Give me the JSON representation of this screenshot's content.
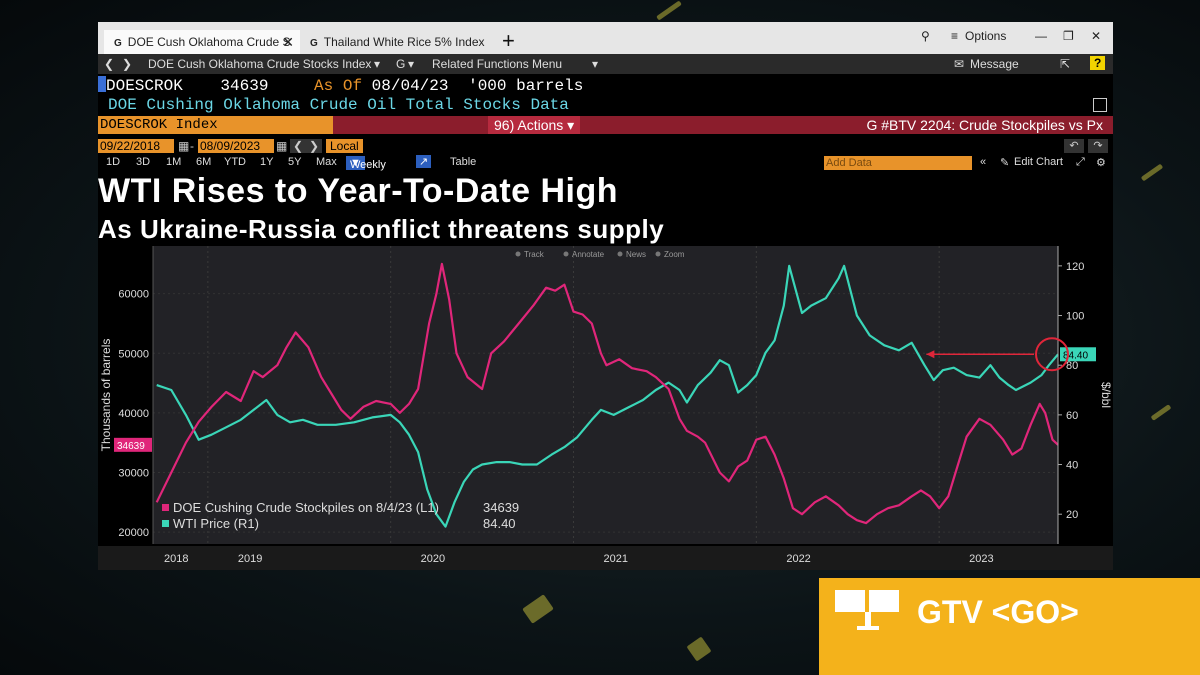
{
  "tabs": [
    {
      "label": "DOE Cush Oklahoma Crude S",
      "icon": "g-icon",
      "close": "✕"
    },
    {
      "label": "Thailand White Rice 5% Index",
      "icon": "g-icon"
    }
  ],
  "new_tab": "+",
  "window_controls": {
    "options": "Options"
  },
  "menubar": {
    "security": "DOE Cush Oklahoma Crude Stocks Index",
    "g_menu": "G",
    "related": "Related Functions Menu",
    "message": "Message",
    "help": "?"
  },
  "quote": {
    "ticker": "DOESCROK",
    "value": "34639",
    "as_of_label": "As Of",
    "date": "08/04/23",
    "unit": "'000 barrels"
  },
  "description": "DOE Cushing Oklahoma Crude Oil Total Stocks Data",
  "function_bar": {
    "security": "DOESCROK Index",
    "actions": "96) Actions",
    "btv_title": "G #BTV 2204: Crude Stockpiles vs Px"
  },
  "date_range": {
    "start": "09/22/2018",
    "end": "08/09/2023",
    "currency": "Local CCY"
  },
  "periods": [
    "1D",
    "3D",
    "1M",
    "6M",
    "YTD",
    "1Y",
    "5Y",
    "Max"
  ],
  "frequency": "Weekly",
  "table_label": "Table",
  "add_data_placeholder": "Add Data",
  "edit_chart_label": "Edit Chart",
  "headline": "WTI Rises to Year-To-Date High",
  "subheadline": "As Ukraine-Russia conflict threatens supply",
  "chart_toolbar": [
    "Track",
    "Annotate",
    "News",
    "Zoom"
  ],
  "colors": {
    "stockpiles": "#e0267a",
    "wti": "#3ad6b8",
    "accent": "#e8932a",
    "red_bar": "#8b1d2c",
    "gtv_yellow": "#f4b21b"
  },
  "chart_data": {
    "type": "line",
    "xlabels": [
      "2018",
      "2019",
      "2020",
      "2021",
      "2022",
      "2023"
    ],
    "ylabel_left": "Thousands of barrels",
    "ylabel_right": "$/bbl",
    "yleft_ticks": [
      20000,
      30000,
      40000,
      50000,
      60000
    ],
    "yright_ticks": [
      20,
      40,
      60,
      80,
      100,
      120
    ],
    "yleft_range": [
      18000,
      68000
    ],
    "yright_range": [
      8,
      128
    ],
    "x_range": [
      2018.7,
      2023.65
    ],
    "legend_position": "bottom-left",
    "series": [
      {
        "name": "DOE Cushing Crude Stockpiles on 8/4/23 (L1)",
        "last_value": "34639",
        "axis": "left",
        "points": [
          [
            2018.72,
            25000
          ],
          [
            2018.8,
            30000
          ],
          [
            2018.88,
            35000
          ],
          [
            2018.95,
            38500
          ],
          [
            2019.02,
            41000
          ],
          [
            2019.1,
            43500
          ],
          [
            2019.18,
            42000
          ],
          [
            2019.25,
            47000
          ],
          [
            2019.3,
            46000
          ],
          [
            2019.38,
            48000
          ],
          [
            2019.43,
            51000
          ],
          [
            2019.48,
            53500
          ],
          [
            2019.55,
            51000
          ],
          [
            2019.62,
            46000
          ],
          [
            2019.68,
            43000
          ],
          [
            2019.73,
            40500
          ],
          [
            2019.78,
            39000
          ],
          [
            2019.85,
            41000
          ],
          [
            2019.92,
            42000
          ],
          [
            2020.0,
            41500
          ],
          [
            2020.05,
            40000
          ],
          [
            2020.1,
            41500
          ],
          [
            2020.15,
            44000
          ],
          [
            2020.21,
            55000
          ],
          [
            2020.25,
            60000
          ],
          [
            2020.28,
            65000
          ],
          [
            2020.32,
            59000
          ],
          [
            2020.36,
            50000
          ],
          [
            2020.42,
            46000
          ],
          [
            2020.5,
            44000
          ],
          [
            2020.55,
            50000
          ],
          [
            2020.62,
            52000
          ],
          [
            2020.7,
            55000
          ],
          [
            2020.78,
            58000
          ],
          [
            2020.85,
            61000
          ],
          [
            2020.9,
            60500
          ],
          [
            2020.95,
            61500
          ],
          [
            2021.0,
            57000
          ],
          [
            2021.05,
            56500
          ],
          [
            2021.1,
            55000
          ],
          [
            2021.15,
            50000
          ],
          [
            2021.18,
            48000
          ],
          [
            2021.25,
            49000
          ],
          [
            2021.32,
            47500
          ],
          [
            2021.4,
            47000
          ],
          [
            2021.45,
            46000
          ],
          [
            2021.52,
            44000
          ],
          [
            2021.58,
            39000
          ],
          [
            2021.62,
            37000
          ],
          [
            2021.68,
            36000
          ],
          [
            2021.72,
            35000
          ],
          [
            2021.8,
            30000
          ],
          [
            2021.85,
            28500
          ],
          [
            2021.9,
            31000
          ],
          [
            2021.95,
            32000
          ],
          [
            2022.0,
            35500
          ],
          [
            2022.05,
            36000
          ],
          [
            2022.1,
            33000
          ],
          [
            2022.15,
            29000
          ],
          [
            2022.2,
            24000
          ],
          [
            2022.25,
            23000
          ],
          [
            2022.32,
            25000
          ],
          [
            2022.38,
            26000
          ],
          [
            2022.45,
            24500
          ],
          [
            2022.5,
            23000
          ],
          [
            2022.55,
            22000
          ],
          [
            2022.6,
            21500
          ],
          [
            2022.66,
            23000
          ],
          [
            2022.72,
            24000
          ],
          [
            2022.78,
            24500
          ],
          [
            2022.85,
            26000
          ],
          [
            2022.9,
            27000
          ],
          [
            2022.95,
            26000
          ],
          [
            2023.0,
            24000
          ],
          [
            2023.05,
            26000
          ],
          [
            2023.1,
            31000
          ],
          [
            2023.15,
            36000
          ],
          [
            2023.22,
            39000
          ],
          [
            2023.28,
            38000
          ],
          [
            2023.35,
            35500
          ],
          [
            2023.4,
            33000
          ],
          [
            2023.45,
            34000
          ],
          [
            2023.5,
            38000
          ],
          [
            2023.55,
            41500
          ],
          [
            2023.58,
            40000
          ],
          [
            2023.62,
            35500
          ],
          [
            2023.65,
            34639
          ]
        ]
      },
      {
        "name": "WTI Price (R1)",
        "last_value": "84.40",
        "axis": "right",
        "points": [
          [
            2018.72,
            72
          ],
          [
            2018.8,
            70
          ],
          [
            2018.88,
            60
          ],
          [
            2018.95,
            50
          ],
          [
            2019.02,
            52
          ],
          [
            2019.1,
            55
          ],
          [
            2019.18,
            58
          ],
          [
            2019.25,
            62
          ],
          [
            2019.32,
            66
          ],
          [
            2019.38,
            60
          ],
          [
            2019.45,
            57
          ],
          [
            2019.52,
            58
          ],
          [
            2019.6,
            56
          ],
          [
            2019.7,
            56
          ],
          [
            2019.8,
            57
          ],
          [
            2019.9,
            59
          ],
          [
            2020.0,
            60
          ],
          [
            2020.05,
            57
          ],
          [
            2020.1,
            52
          ],
          [
            2020.15,
            45
          ],
          [
            2020.2,
            30
          ],
          [
            2020.25,
            20
          ],
          [
            2020.3,
            15
          ],
          [
            2020.35,
            25
          ],
          [
            2020.4,
            33
          ],
          [
            2020.45,
            38
          ],
          [
            2020.5,
            40
          ],
          [
            2020.58,
            41
          ],
          [
            2020.65,
            41
          ],
          [
            2020.72,
            40
          ],
          [
            2020.8,
            40
          ],
          [
            2020.88,
            44
          ],
          [
            2020.95,
            47
          ],
          [
            2021.02,
            51
          ],
          [
            2021.1,
            58
          ],
          [
            2021.15,
            62
          ],
          [
            2021.22,
            60
          ],
          [
            2021.3,
            63
          ],
          [
            2021.38,
            66
          ],
          [
            2021.45,
            70
          ],
          [
            2021.52,
            73
          ],
          [
            2021.58,
            70
          ],
          [
            2021.62,
            65
          ],
          [
            2021.68,
            72
          ],
          [
            2021.75,
            77
          ],
          [
            2021.8,
            82
          ],
          [
            2021.85,
            80
          ],
          [
            2021.9,
            69
          ],
          [
            2021.95,
            72
          ],
          [
            2022.0,
            76
          ],
          [
            2022.05,
            85
          ],
          [
            2022.1,
            90
          ],
          [
            2022.15,
            104
          ],
          [
            2022.18,
            120
          ],
          [
            2022.25,
            101
          ],
          [
            2022.3,
            104
          ],
          [
            2022.38,
            107
          ],
          [
            2022.45,
            115
          ],
          [
            2022.48,
            120
          ],
          [
            2022.55,
            100
          ],
          [
            2022.62,
            92
          ],
          [
            2022.7,
            88
          ],
          [
            2022.78,
            86
          ],
          [
            2022.85,
            89
          ],
          [
            2022.92,
            80
          ],
          [
            2022.97,
            74
          ],
          [
            2023.02,
            78
          ],
          [
            2023.08,
            79
          ],
          [
            2023.15,
            76
          ],
          [
            2023.22,
            75
          ],
          [
            2023.28,
            80
          ],
          [
            2023.33,
            75
          ],
          [
            2023.38,
            72
          ],
          [
            2023.42,
            70
          ],
          [
            2023.5,
            73
          ],
          [
            2023.56,
            76
          ],
          [
            2023.6,
            80
          ],
          [
            2023.65,
            84.4
          ]
        ]
      }
    ]
  },
  "gtv": {
    "label": "GTV <GO>"
  }
}
